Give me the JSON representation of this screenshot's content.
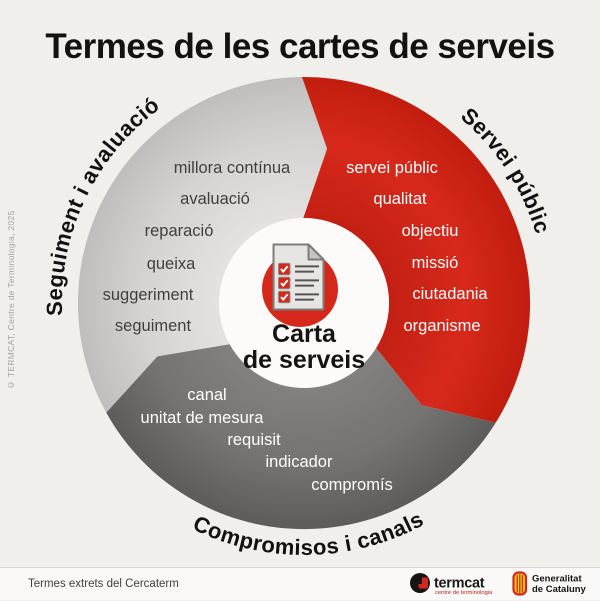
{
  "title": "Termes de les cartes de serveis",
  "copyright": "© TERMCAT, Centre de Terminologia, 2025",
  "center": {
    "line1": "Carta",
    "line2": "de serveis",
    "icon": "checklist-document-icon"
  },
  "segments": [
    {
      "id": "seguiment-avaluacio",
      "label": "Seguiment i avaluació",
      "color_inner": "#e3e2e0",
      "color_mid": "#d4d3d1",
      "color_outer": "#bfbebc",
      "text_color": "#413f3d",
      "terms": [
        "millora contínua",
        "avaluació",
        "reparació",
        "queixa",
        "suggeriment",
        "seguiment"
      ]
    },
    {
      "id": "servei-public",
      "label": "Servei públic",
      "color_inner": "#c32013",
      "color_mid": "#d7291b",
      "color_outer": "#c11d0e",
      "text_color": "#ffffff",
      "terms": [
        "servei públic",
        "qualitat",
        "objectiu",
        "missió",
        "ciutadania",
        "organisme"
      ]
    },
    {
      "id": "compromisos-canals",
      "label": "Compromisos i canals",
      "color_inner": "#83817f",
      "color_mid": "#757371",
      "color_outer": "#5e5c5a",
      "text_color": "#ffffff",
      "terms": [
        "canal",
        "unitat de mesura",
        "requisit",
        "indicador",
        "compromís"
      ]
    }
  ],
  "footer": {
    "source": "Termes extrets del Cercaterm",
    "termcat": {
      "name": "termcat",
      "tagline": "centre de terminologia"
    },
    "generalitat": {
      "line1": "Generalitat",
      "line2": "de Catalunya"
    }
  },
  "colors": {
    "background": "#f1efec",
    "footer_bg": "#faf9f7",
    "accent_red": "#d5281b",
    "logo_black": "#171513",
    "senyera_yellow": "#f7cf13",
    "center_circle": "#fcfbf9"
  }
}
